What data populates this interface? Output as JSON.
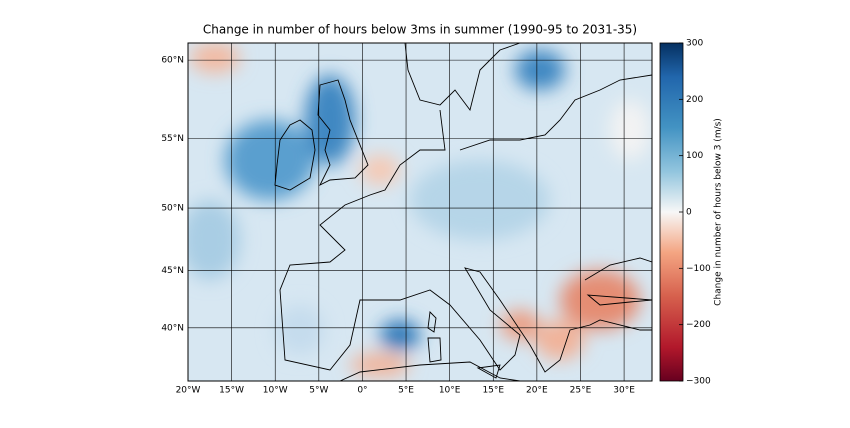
{
  "chart_data": {
    "type": "map",
    "title": "Change in number of hours below 3ms in summer (1990-95 to 2031-35)",
    "xlim": [
      -20,
      33.2
    ],
    "ylim": [
      35,
      61
    ],
    "xticks": [
      {
        "value": -20,
        "label": "20°W"
      },
      {
        "value": -15,
        "label": "15°W"
      },
      {
        "value": -10,
        "label": "10°W"
      },
      {
        "value": -5,
        "label": "5°W"
      },
      {
        "value": 0,
        "label": "0°"
      },
      {
        "value": 5,
        "label": "5°E"
      },
      {
        "value": 10,
        "label": "10°E"
      },
      {
        "value": 15,
        "label": "15°E"
      },
      {
        "value": 20,
        "label": "20°E"
      },
      {
        "value": 25,
        "label": "25°E"
      },
      {
        "value": 30,
        "label": "30°E"
      }
    ],
    "yticks": [
      {
        "value": 40,
        "label": "40°N"
      },
      {
        "value": 45,
        "label": "45°N"
      },
      {
        "value": 50,
        "label": "50°N"
      },
      {
        "value": 55,
        "label": "55°N"
      },
      {
        "value": 60,
        "label": "60°N"
      }
    ],
    "grid": true,
    "colorbar": {
      "label": "Change in number of hours below 3 (m/s)",
      "colormap": "RdBu",
      "lim": [
        -300,
        300
      ],
      "ticks": [
        {
          "value": -300,
          "label": "−300"
        },
        {
          "value": -200,
          "label": "−200"
        },
        {
          "value": -100,
          "label": "−100"
        },
        0,
        100,
        200,
        300
      ]
    }
  }
}
